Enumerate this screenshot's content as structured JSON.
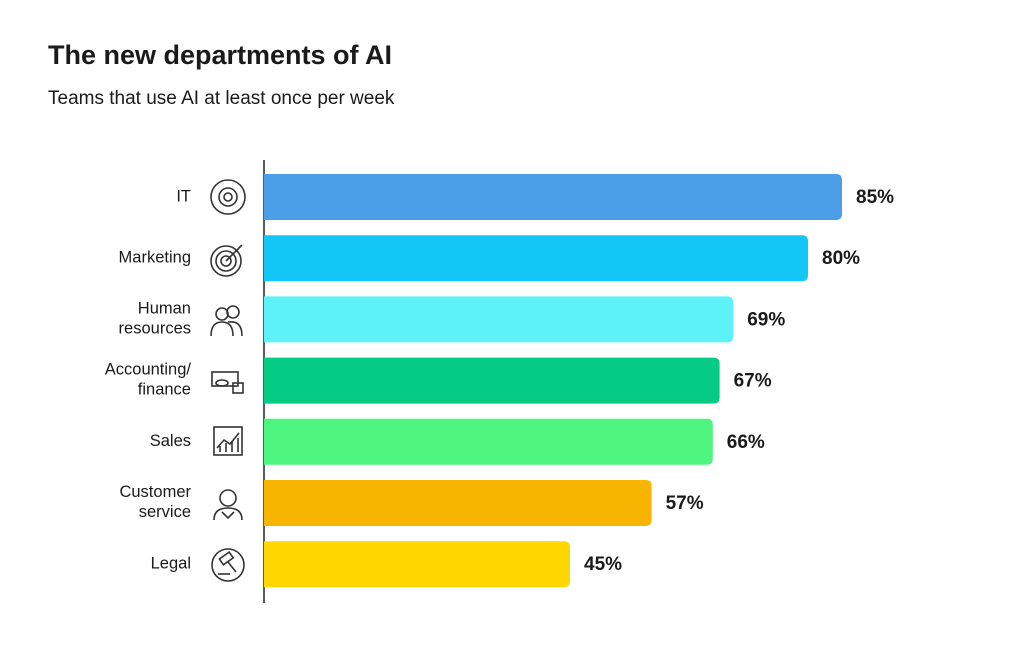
{
  "chart_data": {
    "type": "bar",
    "orientation": "horizontal",
    "title": "The new departments of AI",
    "subtitle": "Teams that use AI at least once per week",
    "categories": [
      "IT",
      "Marketing",
      "Human resources",
      "Accounting/finance",
      "Sales",
      "Customer service",
      "Legal"
    ],
    "values": [
      85,
      80,
      69,
      67,
      66,
      57,
      45
    ],
    "value_labels": [
      "85%",
      "80%",
      "69%",
      "67%",
      "66%",
      "57%",
      "45%"
    ],
    "colors": [
      "#4a9fe8",
      "#12c6f5",
      "#5df2f7",
      "#05cc85",
      "#4df57e",
      "#f7b500",
      "#fed700"
    ],
    "xlim": [
      0,
      100
    ]
  }
}
